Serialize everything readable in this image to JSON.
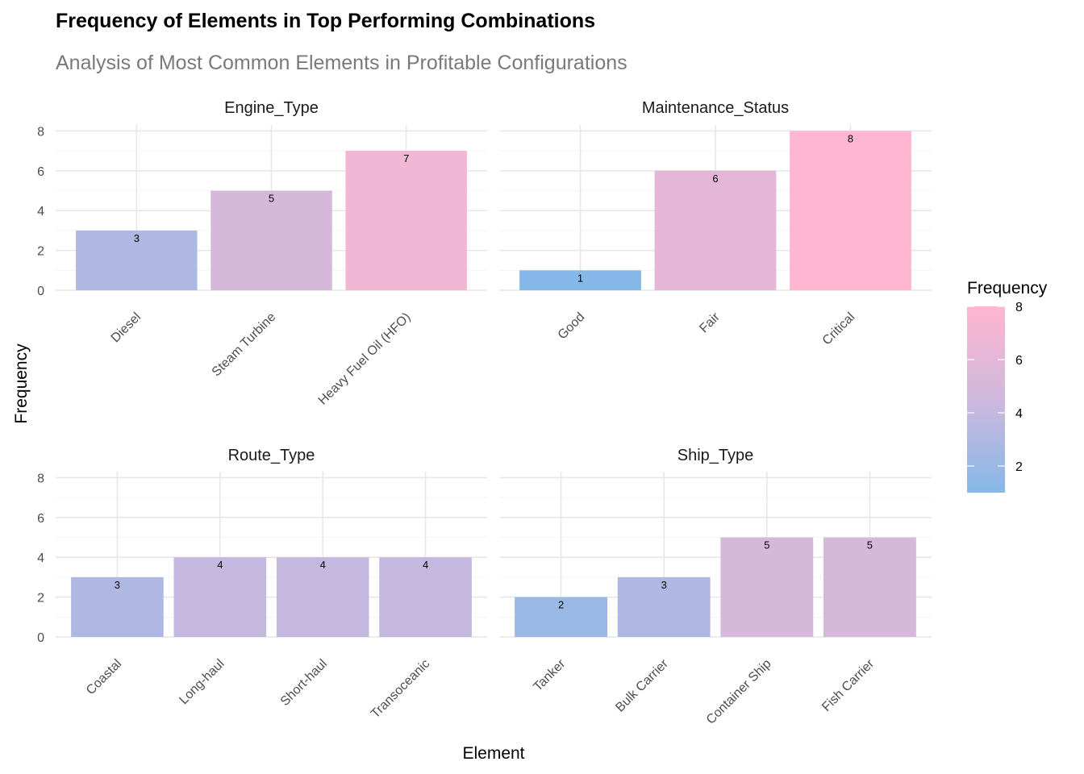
{
  "chart_data": {
    "type": "bar",
    "title": "Frequency of Elements in Top Performing Combinations",
    "subtitle": "Analysis of Most Common Elements in Profitable Configurations",
    "xlabel": "Element",
    "ylabel": "Frequency",
    "ylim": [
      0,
      8.3
    ],
    "yticks": [
      0,
      2,
      4,
      6,
      8
    ],
    "grid": true,
    "legend": {
      "title": "Frequency",
      "placement": "right",
      "range": [
        1,
        8
      ],
      "ticks": [
        2,
        4,
        6,
        8
      ],
      "low_color": "#85B8E8",
      "high_color": "#FFB6D1"
    },
    "facets": [
      {
        "name": "Engine_Type",
        "categories": [
          "Diesel",
          "Steam Turbine",
          "Heavy Fuel Oil (HFO)"
        ],
        "values": [
          3,
          5,
          7
        ]
      },
      {
        "name": "Maintenance_Status",
        "categories": [
          "Good",
          "Fair",
          "Critical"
        ],
        "values": [
          1,
          6,
          8
        ]
      },
      {
        "name": "Route_Type",
        "categories": [
          "Coastal",
          "Long-haul",
          "Short-haul",
          "Transoceanic"
        ],
        "values": [
          3,
          4,
          4,
          4
        ]
      },
      {
        "name": "Ship_Type",
        "categories": [
          "Tanker",
          "Bulk Carrier",
          "Container Ship",
          "Fish Carrier"
        ],
        "values": [
          2,
          3,
          5,
          5
        ]
      }
    ]
  }
}
